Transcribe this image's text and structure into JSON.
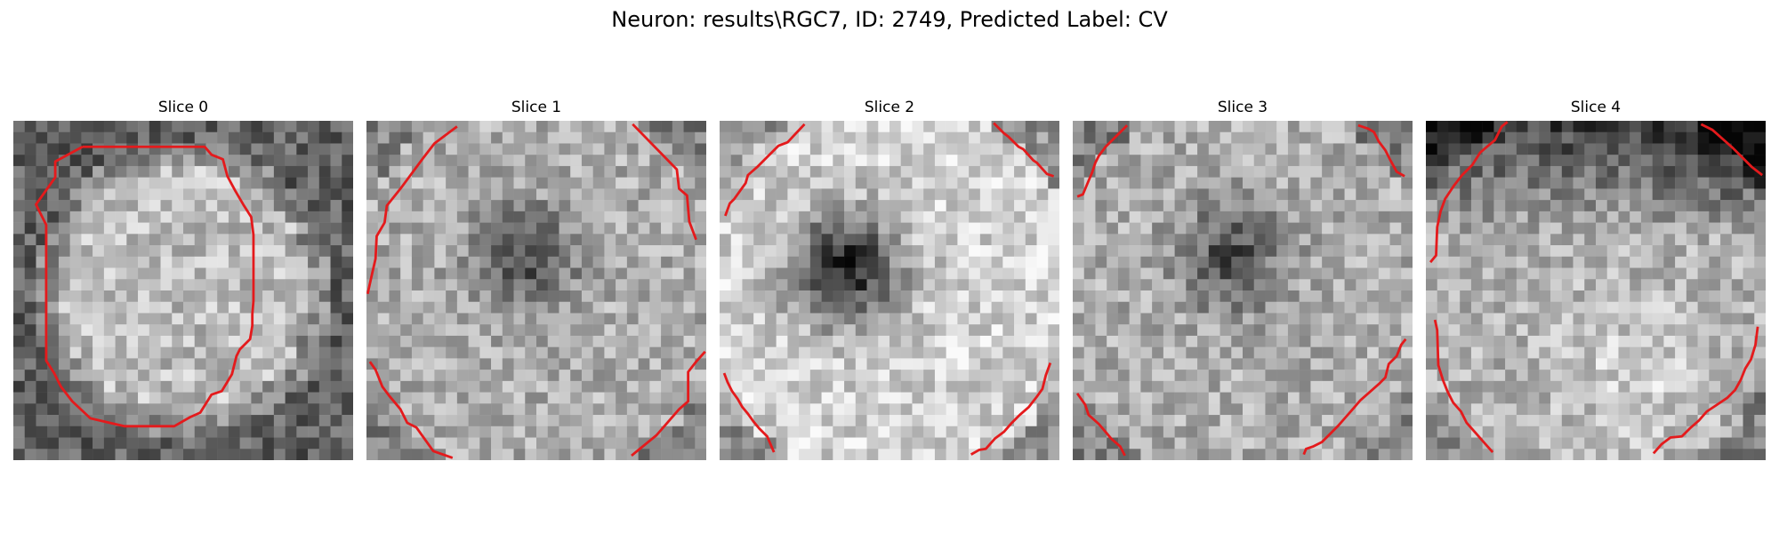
{
  "figure": {
    "title": "Neuron: results\\RGC7, ID: 2749, Predicted Label: CV",
    "contour_color": "#e41a1c"
  },
  "slices": [
    {
      "title": "Slice 0",
      "pattern": "bright-center"
    },
    {
      "title": "Slice 1",
      "pattern": "dark-center"
    },
    {
      "title": "Slice 2",
      "pattern": "dark-nucleus"
    },
    {
      "title": "Slice 3",
      "pattern": "dark-center"
    },
    {
      "title": "Slice 4",
      "pattern": "dark-top"
    }
  ]
}
